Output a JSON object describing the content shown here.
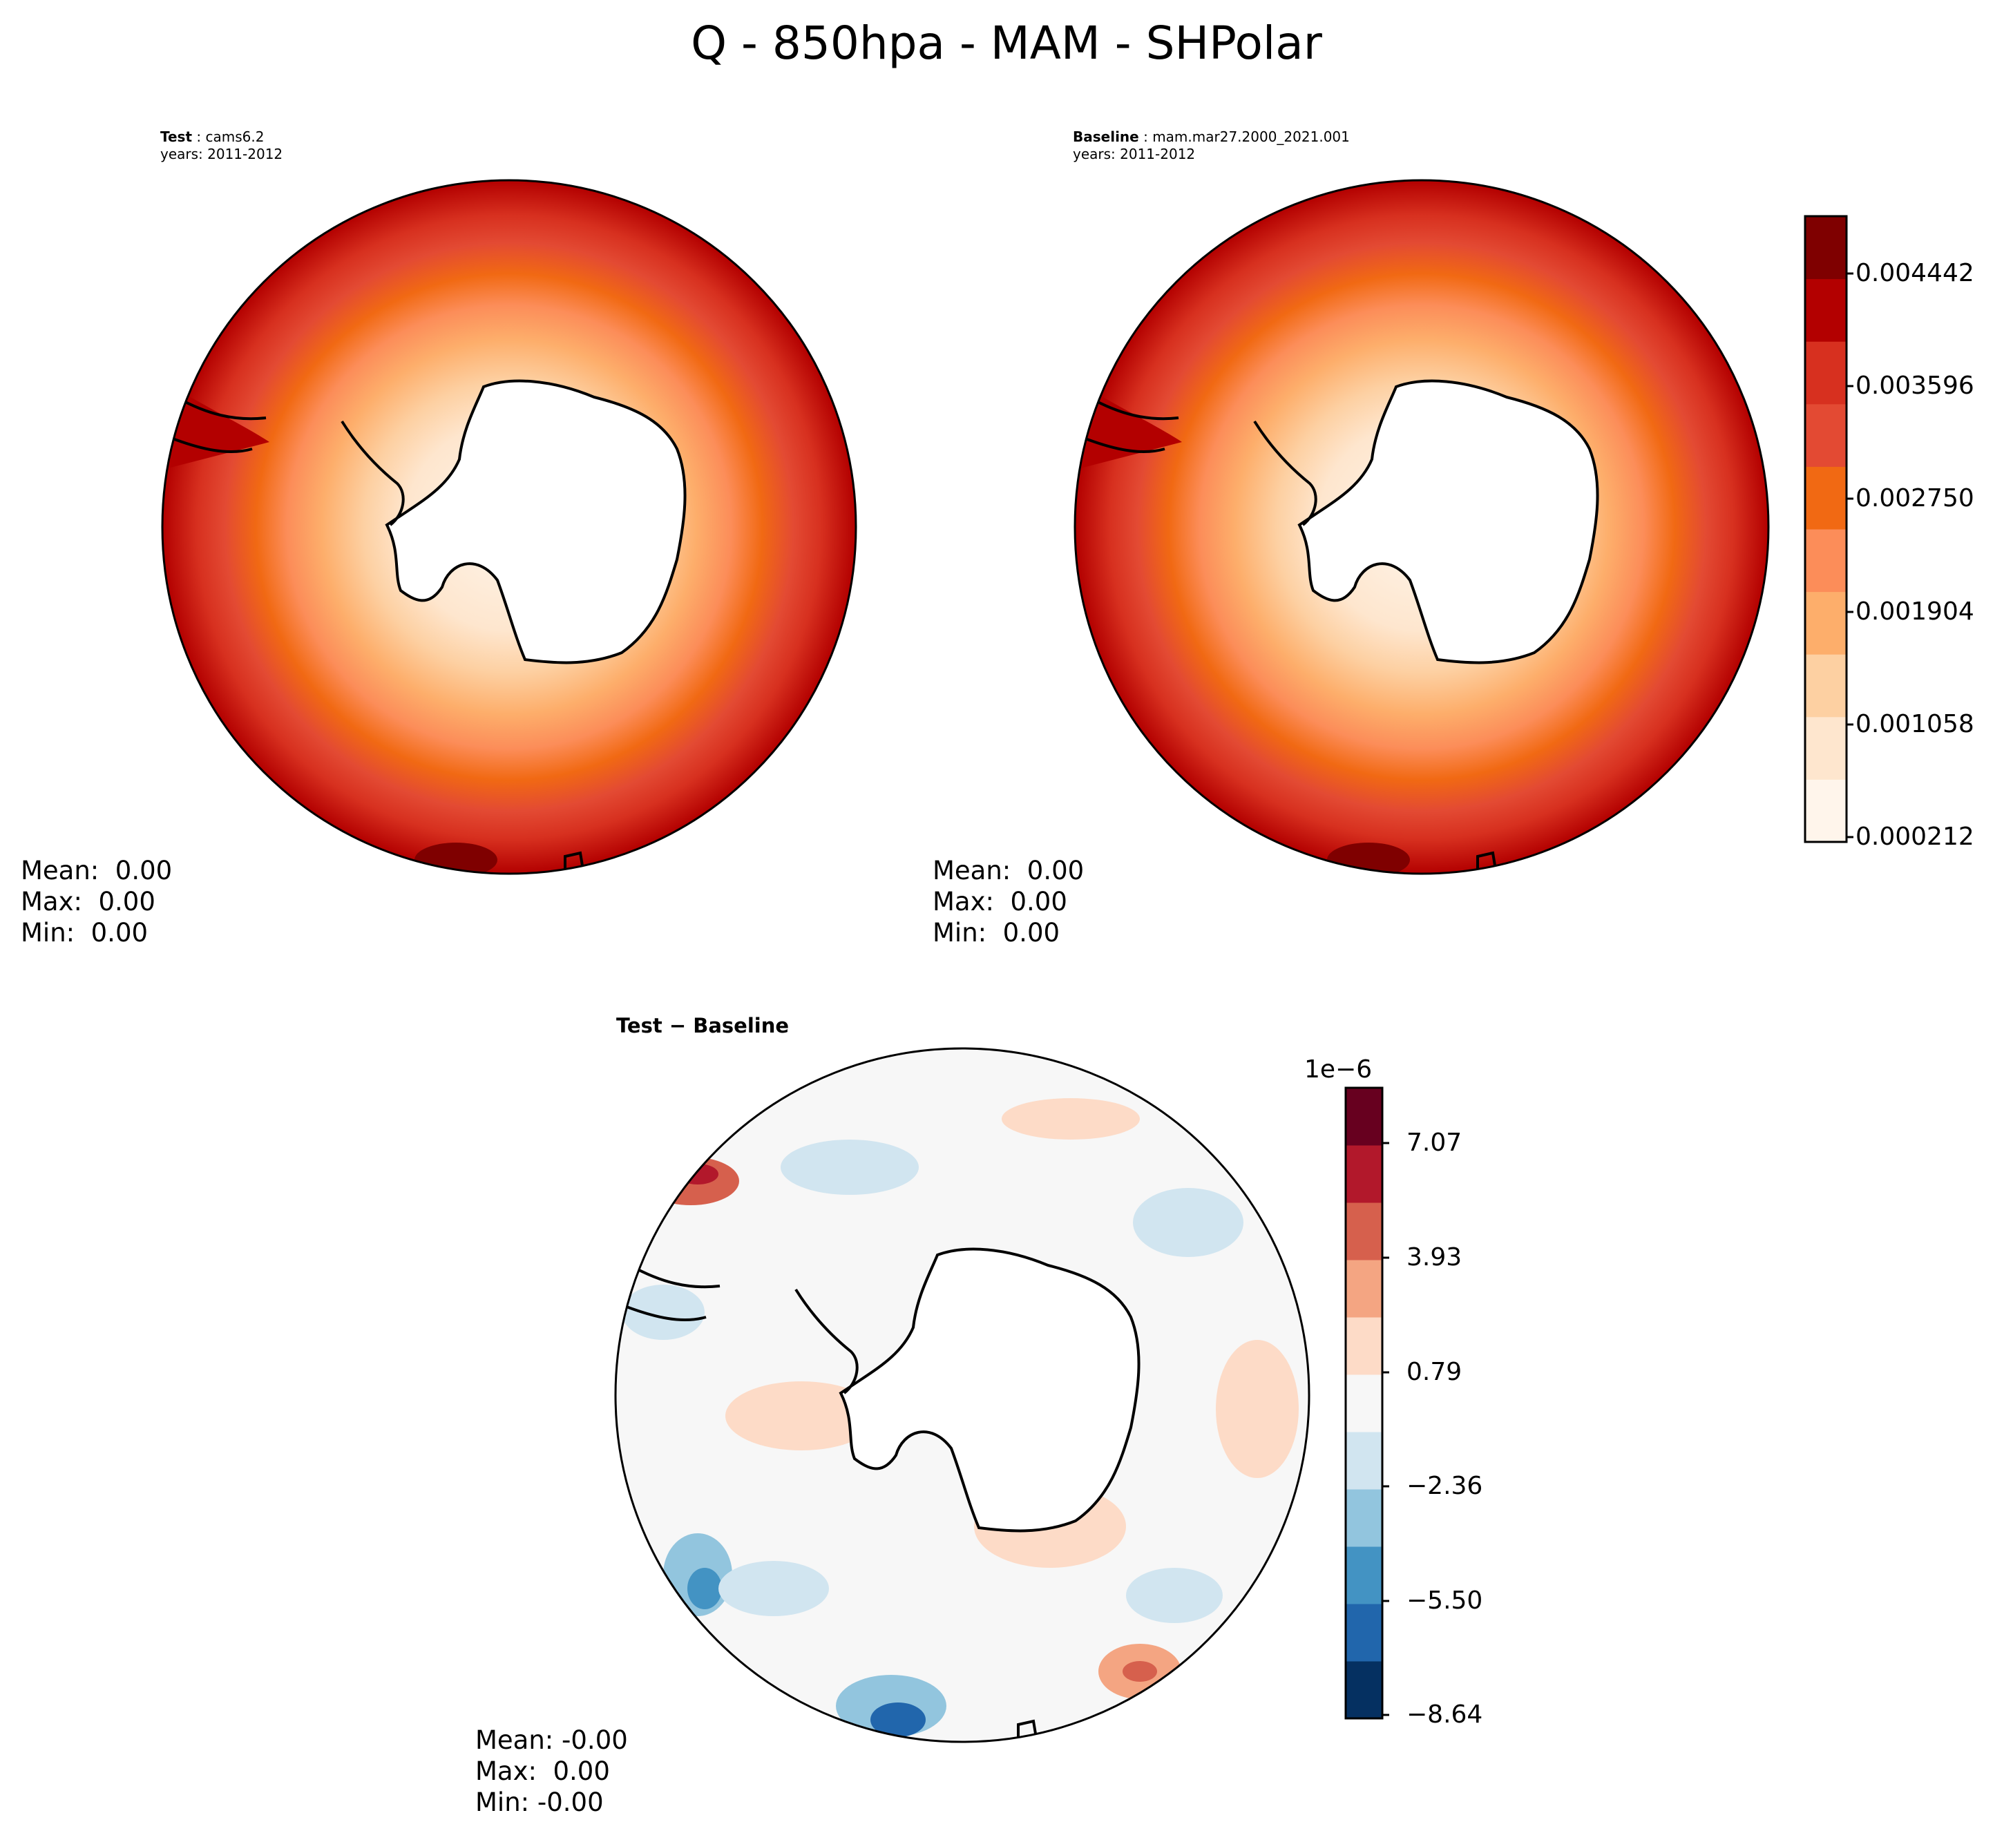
{
  "figure": {
    "title": "Q - 850hpa - MAM - SHPolar"
  },
  "panels": {
    "test": {
      "label": "Test",
      "name": "cams6.2",
      "years": "years: 2011-2012",
      "mean": "Mean:  0.00",
      "max": "Max:  0.00",
      "min": "Min:  0.00"
    },
    "baseline": {
      "label": "Baseline",
      "name": "mam.mar27.2000_2021.001",
      "years": "years: 2011-2012",
      "mean": "Mean:  0.00",
      "max": "Max:  0.00",
      "min": "Min:  0.00"
    },
    "diff": {
      "label": "Test − Baseline",
      "mean": "Mean: -0.00",
      "max": "Max:  0.00",
      "min": "Min: -0.00"
    }
  },
  "colorbars": {
    "main": {
      "ticks": [
        "0.004442",
        "0.003596",
        "0.002750",
        "0.001904",
        "0.001058",
        "0.000212"
      ],
      "colors": [
        "#fff5eb",
        "#fee6ce",
        "#fdd0a2",
        "#fdae6b",
        "#fc8d59",
        "#f16913",
        "#e34a33",
        "#d7301f",
        "#b30000",
        "#7f0000"
      ]
    },
    "diff": {
      "exponent": "1e−6",
      "ticks": [
        "7.07",
        "3.93",
        "0.79",
        "−2.36",
        "−5.50",
        "−8.64"
      ],
      "colors": [
        "#053061",
        "#2166ac",
        "#4393c3",
        "#92c5de",
        "#d1e5f0",
        "#f7f7f7",
        "#fddbc7",
        "#f4a582",
        "#d6604d",
        "#b2182b",
        "#67001f"
      ]
    }
  },
  "map_colors": {
    "land": "#ffffff",
    "coast": "#000000",
    "ring_outer": "#b30000",
    "ring_inner": "#fff5eb"
  }
}
